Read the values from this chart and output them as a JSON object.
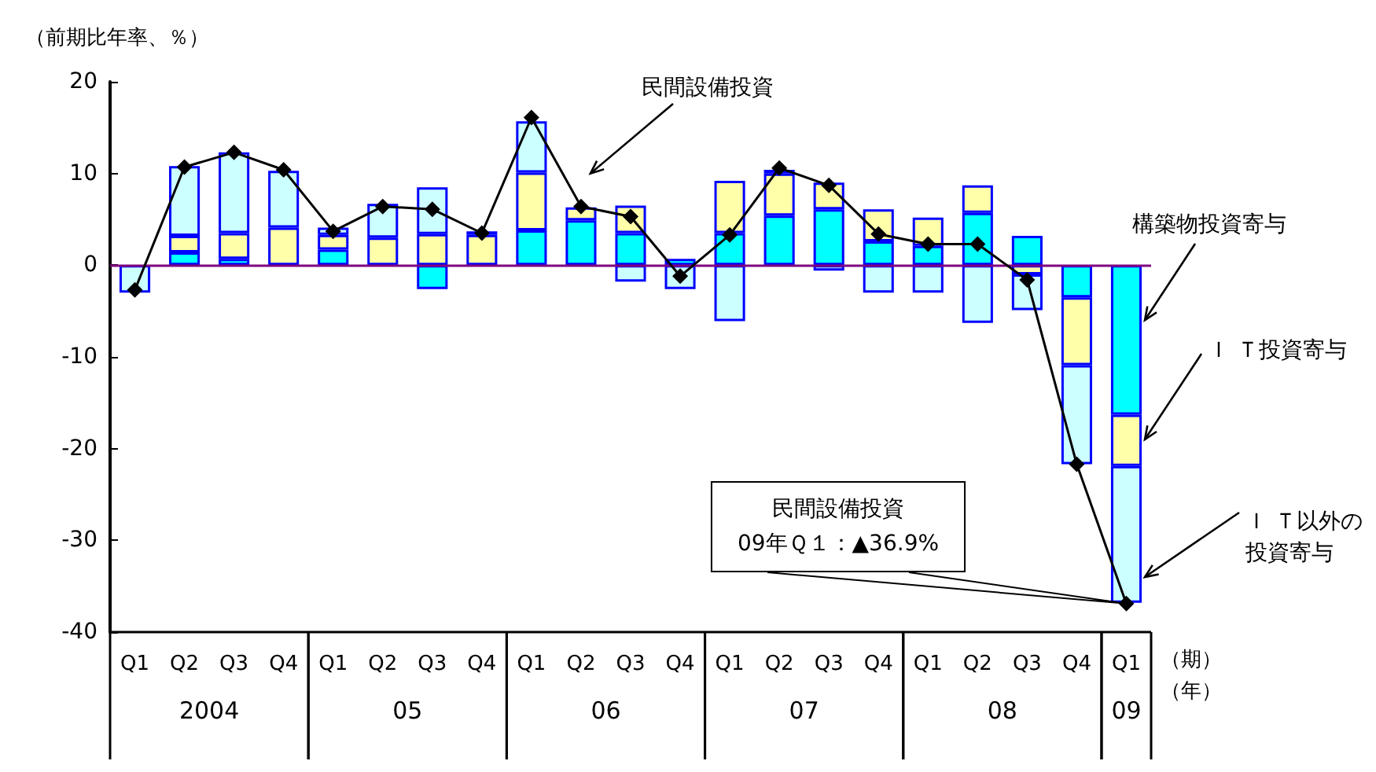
{
  "chart_data": {
    "type": "bar",
    "stacked": true,
    "ylabel": "（前期比年率、％）",
    "xlabel": "（期）（年）",
    "categories": [
      "Q1",
      "Q2",
      "Q3",
      "Q4",
      "Q1",
      "Q2",
      "Q3",
      "Q4",
      "Q1",
      "Q2",
      "Q3",
      "Q4",
      "Q1",
      "Q2",
      "Q3",
      "Q4",
      "Q1",
      "Q2",
      "Q3",
      "Q4",
      "Q1"
    ],
    "series": [
      {
        "name": "構築物投資寄与",
        "color": "#00ffff",
        "values": [
          null,
          1.4,
          0.7,
          null,
          1.7,
          null,
          -2.6,
          null,
          3.8,
          4.9,
          3.5,
          0.7,
          3.5,
          5.4,
          6.1,
          2.6,
          2.1,
          5.7,
          3.2,
          -3.5,
          -16.3
        ]
      },
      {
        "name": "Ｉ Ｔ投資寄与",
        "color": "#ffffaa",
        "values": [
          null,
          1.8,
          2.8,
          4.1,
          1.6,
          3.0,
          3.4,
          3.3,
          6.3,
          1.4,
          3.0,
          null,
          5.7,
          4.6,
          2.9,
          3.5,
          3.1,
          3.0,
          -1.0,
          -7.4,
          -5.6
        ]
      },
      {
        "name": "Ｉ Ｔ以外の投資寄与",
        "color": "#ccffff",
        "values": [
          -3.0,
          7.6,
          8.8,
          6.2,
          0.8,
          3.7,
          5.1,
          0.4,
          5.6,
          null,
          -1.8,
          -2.6,
          -6.1,
          0.4,
          -0.6,
          -3.0,
          -3.0,
          -6.3,
          -3.9,
          -10.8,
          -14.9
        ]
      },
      {
        "name": "民間設備投資",
        "type": "line",
        "color": "#000000",
        "values": [
          -2.7,
          10.7,
          12.3,
          10.4,
          3.7,
          6.4,
          6.1,
          3.5,
          16.1,
          6.4,
          5.3,
          -1.2,
          3.3,
          10.6,
          8.7,
          3.4,
          2.3,
          2.3,
          -1.6,
          -21.7,
          -36.9
        ]
      }
    ],
    "ylim": [
      -40,
      20
    ],
    "yticks": [
      -40,
      -30,
      -20,
      -10,
      0,
      10,
      20
    ],
    "ref_lines": [
      {
        "axis": "y",
        "value": 0,
        "color": "#800080"
      }
    ],
    "grid": false,
    "legend": false,
    "marker": "diamond",
    "line_style": "solid",
    "annotations": [
      "民間設備投資\n09年Ｑ１：▲36.9%",
      "2004",
      "05",
      "06",
      "07",
      "08",
      "09"
    ]
  }
}
